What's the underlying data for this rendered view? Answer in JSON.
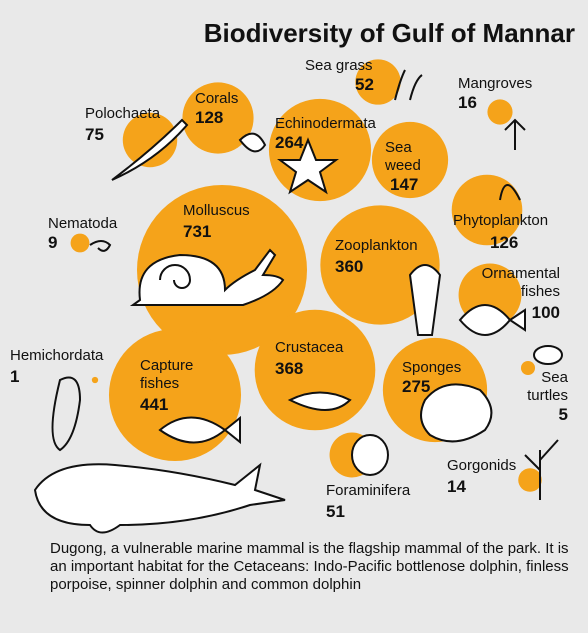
{
  "chart_data": {
    "type": "bubble",
    "title": "Biodiversity of Gulf of Mannar",
    "color": "#f5a31a",
    "categories": [
      "Polochaeta",
      "Corals",
      "Echinodermata",
      "Sea weed",
      "Sea grass",
      "Mangroves",
      "Phytoplankton",
      "Nematoda",
      "Molluscus",
      "Zooplankton",
      "Ornamental fishes",
      "Hemichordata",
      "Capture fishes",
      "Crustacea",
      "Sponges",
      "Sea turtles",
      "Foraminifera",
      "Gorgonids"
    ],
    "values": [
      75,
      128,
      264,
      147,
      52,
      16,
      126,
      9,
      731,
      360,
      100,
      1,
      441,
      368,
      275,
      5,
      51,
      14
    ],
    "caption": "Dugong, a vulnerable marine mammal is the flagship mammal of the park. It is an important habitat for the Cetaceans: Indo-Pacific bottlenose dolphin, finless porpoise, spinner dolphin and common dolphin"
  }
}
